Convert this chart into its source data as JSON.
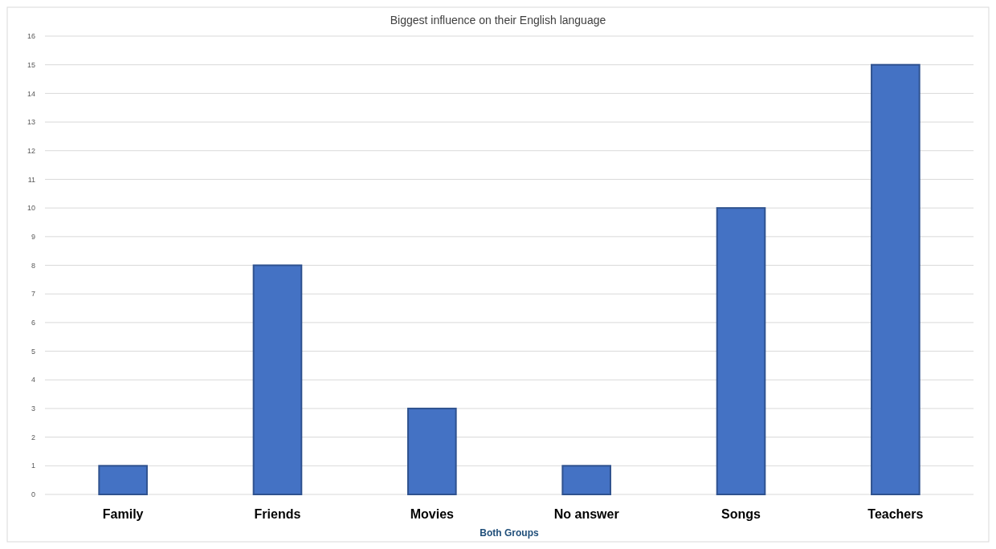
{
  "chart_data": {
    "type": "bar",
    "title": "Biggest influence on their English language",
    "xlabel": "Both Groups",
    "categories": [
      "Family",
      "Friends",
      "Movies",
      "No answer",
      "Songs",
      "Teachers"
    ],
    "values": [
      1,
      8,
      3,
      1,
      10,
      15
    ],
    "color": "#4472c4",
    "ylim": [
      0,
      16
    ],
    "yticks": [
      0,
      1,
      2,
      3,
      4,
      5,
      6,
      7,
      8,
      9,
      10,
      11,
      12,
      13,
      14,
      15,
      16
    ],
    "grid": "y"
  }
}
